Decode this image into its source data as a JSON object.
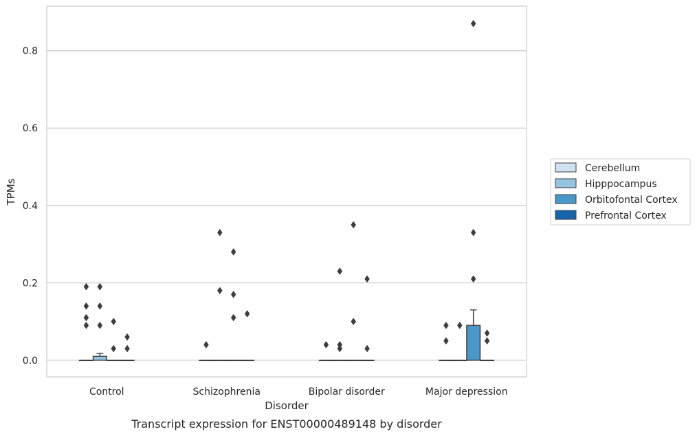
{
  "caption": "Transcript expression for ENST00000489148 by disorder",
  "chart_data": {
    "type": "box",
    "title": "",
    "xlabel": "Disorder",
    "ylabel": "TPMs",
    "categories": [
      "Control",
      "Schizophrenia",
      "Bipolar disorder",
      "Major depression"
    ],
    "ylim": [
      -0.043,
      0.915
    ],
    "yticks": [
      0.0,
      0.2,
      0.4,
      0.6,
      0.8
    ],
    "ytick_labels": [
      "0.0",
      "0.2",
      "0.4",
      "0.6",
      "0.8"
    ],
    "grid": "horizontal",
    "legend_position": "right",
    "series": [
      {
        "name": "Cerebellum",
        "color": "#d0e1f2",
        "boxes": [
          {
            "q1": 0,
            "median": 0,
            "q3": 0,
            "whisker_low": 0,
            "whisker_high": 0,
            "outliers": [
              0.11,
              0.14,
              0.09,
              0.19
            ]
          },
          {
            "q1": 0,
            "median": 0,
            "q3": 0,
            "whisker_low": 0,
            "whisker_high": 0,
            "outliers": [
              0.04
            ]
          },
          {
            "q1": 0,
            "median": 0,
            "q3": 0,
            "whisker_low": 0,
            "whisker_high": 0,
            "outliers": [
              0.04
            ]
          },
          {
            "q1": 0,
            "median": 0,
            "q3": 0,
            "whisker_low": 0,
            "whisker_high": 0,
            "outliers": [
              0.09,
              0.05
            ]
          }
        ]
      },
      {
        "name": "Hipppocampus",
        "color": "#94c4df",
        "boxes": [
          {
            "q1": 0,
            "median": 0,
            "q3": 0.01,
            "whisker_low": 0,
            "whisker_high": 0.018,
            "outliers": [
              0.14,
              0.09,
              0.19
            ]
          },
          {
            "q1": 0,
            "median": 0,
            "q3": 0,
            "whisker_low": 0,
            "whisker_high": 0,
            "outliers": [
              0.33,
              0.18
            ]
          },
          {
            "q1": 0,
            "median": 0,
            "q3": 0,
            "whisker_low": 0,
            "whisker_high": 0,
            "outliers": [
              0.23,
              0.04,
              0.03
            ]
          },
          {
            "q1": 0,
            "median": 0,
            "q3": 0,
            "whisker_low": 0,
            "whisker_high": 0,
            "outliers": [
              0.09
            ]
          }
        ]
      },
      {
        "name": "Orbitofontal Cortex",
        "color": "#4a98c9",
        "boxes": [
          {
            "q1": 0,
            "median": 0,
            "q3": 0,
            "whisker_low": 0,
            "whisker_high": 0,
            "outliers": [
              0.1,
              0.03
            ]
          },
          {
            "q1": 0,
            "median": 0,
            "q3": 0,
            "whisker_low": 0,
            "whisker_high": 0,
            "outliers": [
              0.28,
              0.17,
              0.11
            ]
          },
          {
            "q1": 0,
            "median": 0,
            "q3": 0,
            "whisker_low": 0,
            "whisker_high": 0,
            "outliers": [
              0.35,
              0.1
            ]
          },
          {
            "q1": 0,
            "median": 0,
            "q3": 0.09,
            "whisker_low": 0,
            "whisker_high": 0.13,
            "outliers": [
              0.87,
              0.33,
              0.21
            ]
          }
        ]
      },
      {
        "name": "Prefrontal Cortex",
        "color": "#1764ab",
        "boxes": [
          {
            "q1": 0,
            "median": 0,
            "q3": 0,
            "whisker_low": 0,
            "whisker_high": 0,
            "outliers": [
              0.06,
              0.03
            ]
          },
          {
            "q1": 0,
            "median": 0,
            "q3": 0,
            "whisker_low": 0,
            "whisker_high": 0,
            "outliers": [
              0.12
            ]
          },
          {
            "q1": 0,
            "median": 0,
            "q3": 0,
            "whisker_low": 0,
            "whisker_high": 0,
            "outliers": [
              0.21,
              0.03
            ]
          },
          {
            "q1": 0,
            "median": 0,
            "q3": 0,
            "whisker_low": 0,
            "whisker_high": 0,
            "outliers": [
              0.07,
              0.05
            ]
          }
        ]
      }
    ]
  }
}
